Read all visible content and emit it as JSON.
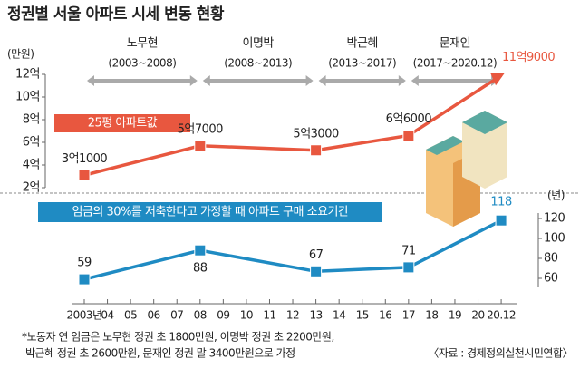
{
  "title": "정권별 서울 아파트 시세 변동 현황",
  "periods": [
    {
      "name": "노무현",
      "range": "(2003~2008)"
    },
    {
      "name": "이명박",
      "range": "(2008~2013)"
    },
    {
      "name": "박근혜",
      "range": "(2013~2017)"
    },
    {
      "name": "문재인",
      "range": "(2017~2020.12)"
    }
  ],
  "chart_data": [
    {
      "type": "line",
      "unit": "(만원)",
      "label": "25평 아파트값",
      "color": "#e8573f",
      "x": [
        "2003년",
        "08",
        "13",
        "17",
        "20.12"
      ],
      "values": [
        31000,
        57000,
        53000,
        66000,
        119000
      ],
      "value_labels": [
        "3억1000",
        "5억7000",
        "5억3000",
        "6억6000",
        "11억9000"
      ],
      "ylim": [
        20000,
        120000
      ],
      "yticks": [
        {
          "value": 20000,
          "label": "2억"
        },
        {
          "value": 40000,
          "label": "4억"
        },
        {
          "value": 60000,
          "label": "6억"
        },
        {
          "value": 80000,
          "label": "8억"
        },
        {
          "value": 100000,
          "label": "10억"
        },
        {
          "value": 120000,
          "label": "12억"
        }
      ]
    },
    {
      "type": "line",
      "unit": "(년)",
      "label": "임금의 30%를 저축한다고 가정할 때 아파트 구매 소요기간",
      "color": "#1f8bc3",
      "categories": [
        "2003년",
        "04",
        "05",
        "06",
        "07",
        "08",
        "09",
        "10",
        "11",
        "12",
        "13",
        "14",
        "15",
        "16",
        "17",
        "18",
        "19",
        "20",
        "20.12"
      ],
      "x": [
        "2003년",
        "08",
        "13",
        "17",
        "20.12"
      ],
      "values": [
        59,
        88,
        67,
        71,
        118
      ],
      "ylim": [
        60,
        120
      ],
      "yticks": [
        60,
        80,
        100,
        120
      ]
    }
  ],
  "notes": [
    "*노동자 연 임금은 노무현 정권 초 1800만원, 이명박 정권 초 2200만원,",
    "박근혜 정권 초 2600만원, 문재인 정권 말 3400만원으로 가정"
  ],
  "source": "〈자료 : 경제정의실천시민연합〉"
}
